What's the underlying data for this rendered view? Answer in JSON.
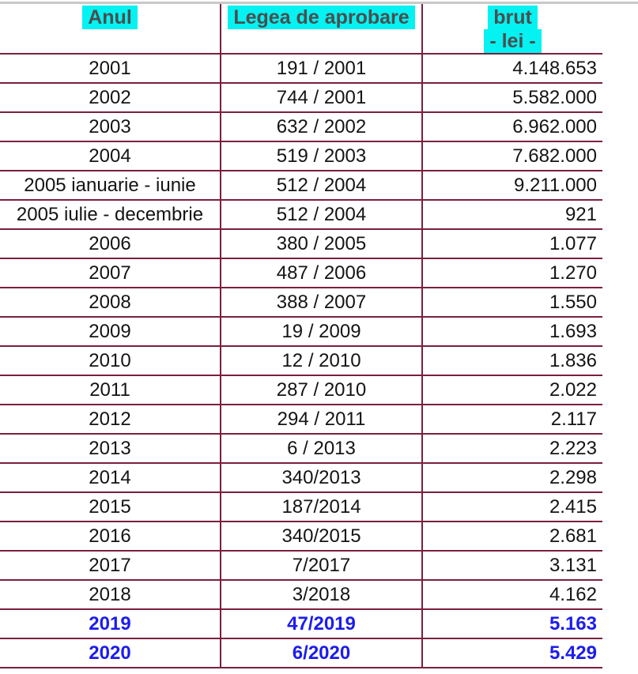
{
  "colors": {
    "accent_blue": "#1c1cee",
    "header_highlight": "#04f2f2",
    "border_maroon": "#7b1f3e",
    "top_line_gray": "#c9c9c9",
    "header_text": "#4d4d4d",
    "body_text": "#141414"
  },
  "table": {
    "headers": {
      "anul": "Anul",
      "legea": "Legea de aprobare",
      "brut_line1": "brut",
      "brut_line2": "- lei -"
    },
    "rows": [
      {
        "anul": "2001",
        "legea": "191 / 2001",
        "brut": "4.148.653",
        "accent": false
      },
      {
        "anul": "2002",
        "legea": "744 / 2001",
        "brut": "5.582.000",
        "accent": false
      },
      {
        "anul": "2003",
        "legea": "632 / 2002",
        "brut": "6.962.000",
        "accent": false
      },
      {
        "anul": "2004",
        "legea": "519 / 2003",
        "brut": "7.682.000",
        "accent": false
      },
      {
        "anul": "2005 ianuarie - iunie",
        "legea": "512 / 2004",
        "brut": "9.211.000",
        "accent": false
      },
      {
        "anul": "2005 iulie - decembrie",
        "legea": "512 / 2004",
        "brut": "921",
        "accent": false
      },
      {
        "anul": "2006",
        "legea": "380 / 2005",
        "brut": "1.077",
        "accent": false
      },
      {
        "anul": "2007",
        "legea": "487 / 2006",
        "brut": "1.270",
        "accent": false
      },
      {
        "anul": "2008",
        "legea": "388 / 2007",
        "brut": "1.550",
        "accent": false
      },
      {
        "anul": "2009",
        "legea": "19 / 2009",
        "brut": "1.693",
        "accent": false
      },
      {
        "anul": "2010",
        "legea": "12 / 2010",
        "brut": "1.836",
        "accent": false
      },
      {
        "anul": "2011",
        "legea": "287 / 2010",
        "brut": "2.022",
        "accent": false
      },
      {
        "anul": "2012",
        "legea": "294 / 2011",
        "brut": "2.117",
        "accent": false
      },
      {
        "anul": "2013",
        "legea": "6 / 2013",
        "brut": "2.223",
        "accent": false
      },
      {
        "anul": "2014",
        "legea": "340/2013",
        "brut": "2.298",
        "accent": false
      },
      {
        "anul": "2015",
        "legea": "187/2014",
        "brut": "2.415",
        "accent": false
      },
      {
        "anul": "2016",
        "legea": "340/2015",
        "brut": "2.681",
        "accent": false
      },
      {
        "anul": "2017",
        "legea": "7/2017",
        "brut": "3.131",
        "accent": false
      },
      {
        "anul": "2018",
        "legea": "3/2018",
        "brut": "4.162",
        "accent": false
      },
      {
        "anul": "2019",
        "legea": "47/2019",
        "brut": "5.163",
        "accent": true
      },
      {
        "anul": "2020",
        "legea": "6/2020",
        "brut": "5.429",
        "accent": true
      }
    ]
  }
}
